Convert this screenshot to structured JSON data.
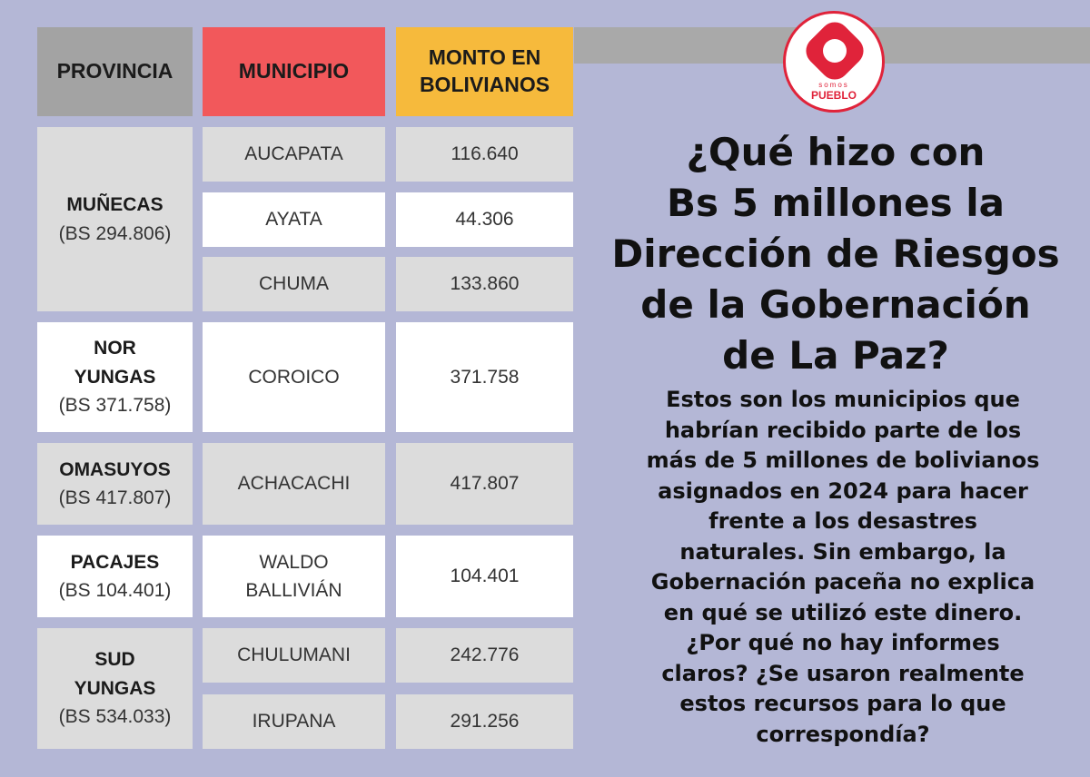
{
  "table": {
    "headers": {
      "provincia": "PROVINCIA",
      "municipio": "MUNICIPIO",
      "monto_line1": "MONTO EN",
      "monto_line2": "BOLIVIANOS"
    },
    "provinces": [
      {
        "name": "MUÑECAS",
        "total": "(BS 294.806)",
        "rows": [
          {
            "municipio": "AUCAPATA",
            "monto": "116.640"
          },
          {
            "municipio": "AYATA",
            "monto": "44.306"
          },
          {
            "municipio": "CHUMA",
            "monto": "133.860"
          }
        ]
      },
      {
        "name_line1": "NOR",
        "name_line2": "YUNGAS",
        "total": "(BS 371.758)",
        "rows": [
          {
            "municipio": "COROICO",
            "monto": "371.758"
          }
        ]
      },
      {
        "name": "OMASUYOS",
        "total": "(BS 417.807)",
        "rows": [
          {
            "municipio": "ACHACACHI",
            "monto": "417.807"
          }
        ]
      },
      {
        "name": "PACAJES",
        "total": "(BS 104.401)",
        "rows": [
          {
            "municipio_line1": "WALDO",
            "municipio_line2": "BALLIVIÁN",
            "monto": "104.401"
          }
        ]
      },
      {
        "name_line1": "SUD",
        "name_line2": "YUNGAS",
        "total": "(BS 534.033)",
        "rows": [
          {
            "municipio": "CHULUMANI",
            "monto": "242.776"
          },
          {
            "municipio": "IRUPANA",
            "monto": "291.256"
          }
        ]
      }
    ]
  },
  "logo": {
    "small_text": "somos",
    "word": "PUEBLO",
    "color": "#e0233a"
  },
  "headline": [
    "¿Qué hizo con",
    "Bs 5 millones la",
    "Dirección de Riesgos",
    "de la Gobernación",
    "de La Paz?"
  ],
  "body": [
    "Estos son los municipios que",
    "habrían recibido parte de los",
    "más de 5 millones de bolivianos",
    "asignados en 2024 para hacer",
    "frente a los desastres",
    "naturales. Sin embargo, la",
    "Gobernación paceña no explica",
    "en qué se utilizó este dinero.",
    "¿Por qué no hay informes",
    "claros? ¿Se usaron realmente",
    "estos recursos para lo que",
    "correspondía?"
  ],
  "colors": {
    "background": "#b4b7d6",
    "header_provincia": "#a3a3a3",
    "header_municipio": "#f2585b",
    "header_monto": "#f6ba3c",
    "cell_gray": "#dcdcdc",
    "cell_white": "#ffffff"
  }
}
